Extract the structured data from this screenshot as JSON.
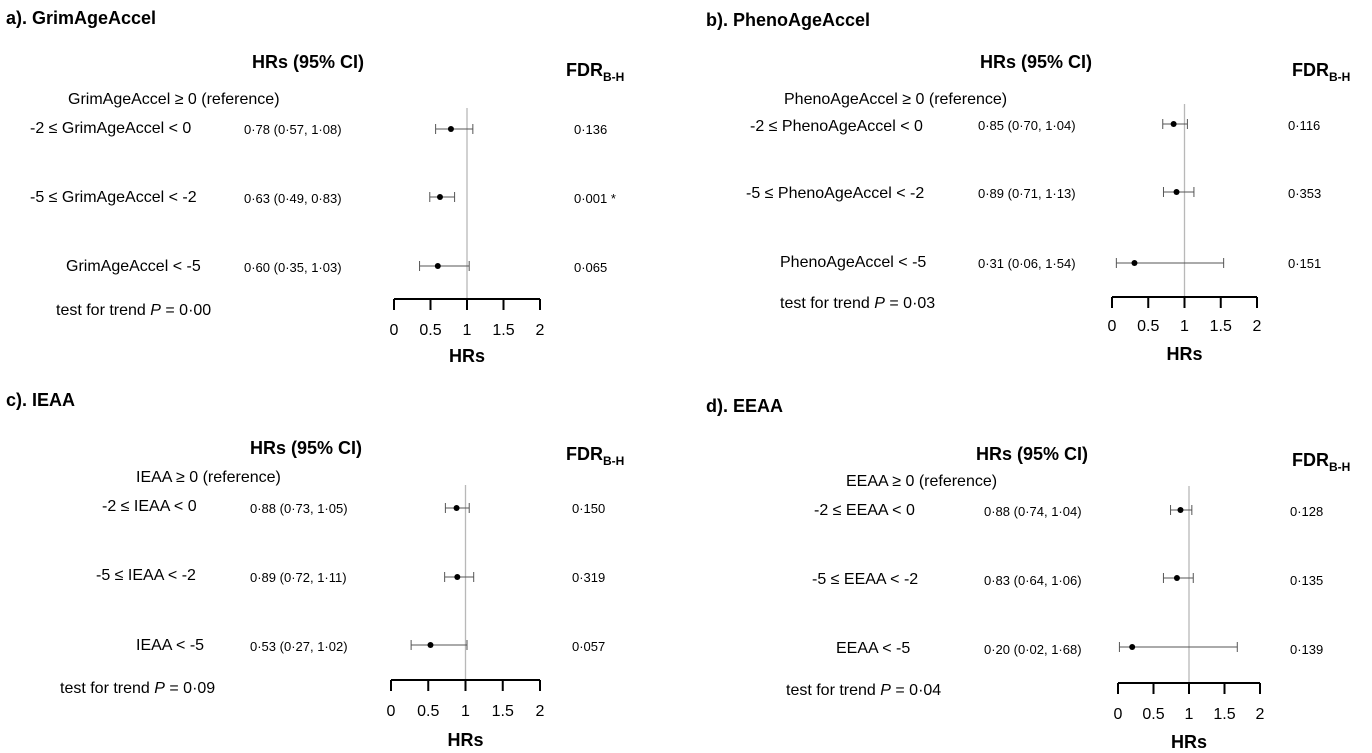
{
  "chart_data": [
    {
      "type": "forest",
      "panel_label": "a). GrimAgeAccel",
      "estimate_header": "HRs (95% CI)",
      "fdr_header_main": "FDR",
      "fdr_header_sub": "B-H",
      "reference": "GrimAgeAccel  ≥  0  (reference)",
      "rows": [
        {
          "label": "-2 ≤ GrimAgeAccel  < 0",
          "estimate_text": "0·78 (0·57, 1·08)",
          "hr": 0.78,
          "lo": 0.57,
          "hi": 1.08,
          "fdr": "0·136"
        },
        {
          "label": "-5 ≤ GrimAgeAccel  < -2",
          "estimate_text": "0·63 (0·49, 0·83)",
          "hr": 0.63,
          "lo": 0.49,
          "hi": 0.83,
          "fdr": "0·001 *"
        },
        {
          "label": "GrimAgeAccel  < -5",
          "estimate_text": "0·60 (0·35, 1·03)",
          "hr": 0.6,
          "lo": 0.35,
          "hi": 1.03,
          "fdr": "0·065"
        }
      ],
      "trend_prefix": "test for trend ",
      "trend_p": "P",
      "trend_suffix": " = 0·00",
      "xlabel": "HRs",
      "xticks": [
        "0",
        "0.5",
        "1",
        "1.5",
        "2"
      ],
      "xlim": [
        0,
        2
      ],
      "ref_line": 1
    },
    {
      "type": "forest",
      "panel_label": "b). PhenoAgeAccel",
      "estimate_header": "HRs (95% CI)",
      "fdr_header_main": "FDR",
      "fdr_header_sub": "B-H",
      "reference": "PhenoAgeAccel  ≥  0  (reference)",
      "rows": [
        {
          "label": "-2 ≤ PhenoAgeAccel  < 0",
          "estimate_text": "0·85 (0·70, 1·04)",
          "hr": 0.85,
          "lo": 0.7,
          "hi": 1.04,
          "fdr": "0·116"
        },
        {
          "label": "-5 ≤ PhenoAgeAccel  < -2",
          "estimate_text": "0·89 (0·71, 1·13)",
          "hr": 0.89,
          "lo": 0.71,
          "hi": 1.13,
          "fdr": "0·353"
        },
        {
          "label": "PhenoAgeAccel  < -5",
          "estimate_text": "0·31 (0·06, 1·54)",
          "hr": 0.31,
          "lo": 0.06,
          "hi": 1.54,
          "fdr": "0·151"
        }
      ],
      "trend_prefix": "test for trend ",
      "trend_p": "P",
      "trend_suffix": " = 0·03",
      "xlabel": "HRs",
      "xticks": [
        "0",
        "0.5",
        "1",
        "1.5",
        "2"
      ],
      "xlim": [
        0,
        2
      ],
      "ref_line": 1
    },
    {
      "type": "forest",
      "panel_label": "c). IEAA",
      "estimate_header": "HRs (95% CI)",
      "fdr_header_main": "FDR",
      "fdr_header_sub": "B-H",
      "reference": "IEAA  ≥ 0 (reference)",
      "rows": [
        {
          "label": "-2 ≤ IEAA  < 0",
          "estimate_text": "0·88 (0·73, 1·05)",
          "hr": 0.88,
          "lo": 0.73,
          "hi": 1.05,
          "fdr": "0·150"
        },
        {
          "label": "-5 ≤ IEAA  < -2",
          "estimate_text": "0·89 (0·72, 1·11)",
          "hr": 0.89,
          "lo": 0.72,
          "hi": 1.11,
          "fdr": "0·319"
        },
        {
          "label": "IEAA  < -5",
          "estimate_text": "0·53 (0·27, 1·02)",
          "hr": 0.53,
          "lo": 0.27,
          "hi": 1.02,
          "fdr": "0·057"
        }
      ],
      "trend_prefix": "test for trend ",
      "trend_p": "P",
      "trend_suffix": " = 0·09",
      "xlabel": "HRs",
      "xticks": [
        "0",
        "0.5",
        "1",
        "1.5",
        "2"
      ],
      "xlim": [
        0,
        2
      ],
      "ref_line": 1
    },
    {
      "type": "forest",
      "panel_label": "d). EEAA",
      "estimate_header": "HRs (95% CI)",
      "fdr_header_main": "FDR",
      "fdr_header_sub": "B-H",
      "reference": "EEAA  ≥  0  (reference)",
      "rows": [
        {
          "label": "-2 ≤ EEAA  < 0",
          "estimate_text": "0·88 (0·74, 1·04)",
          "hr": 0.88,
          "lo": 0.74,
          "hi": 1.04,
          "fdr": "0·128"
        },
        {
          "label": "-5 ≤ EEAA  < -2",
          "estimate_text": "0·83 (0·64, 1·06)",
          "hr": 0.83,
          "lo": 0.64,
          "hi": 1.06,
          "fdr": "0·135"
        },
        {
          "label": "EEAA   < -5",
          "estimate_text": "0·20 (0·02, 1·68)",
          "hr": 0.2,
          "lo": 0.02,
          "hi": 1.68,
          "fdr": "0·139"
        }
      ],
      "trend_prefix": "test for trend ",
      "trend_p": "P",
      "trend_suffix": " = 0·04",
      "xlabel": "HRs",
      "xticks": [
        "0",
        "0.5",
        "1",
        "1.5",
        "2"
      ],
      "xlim": [
        0,
        2
      ],
      "ref_line": 1
    }
  ]
}
